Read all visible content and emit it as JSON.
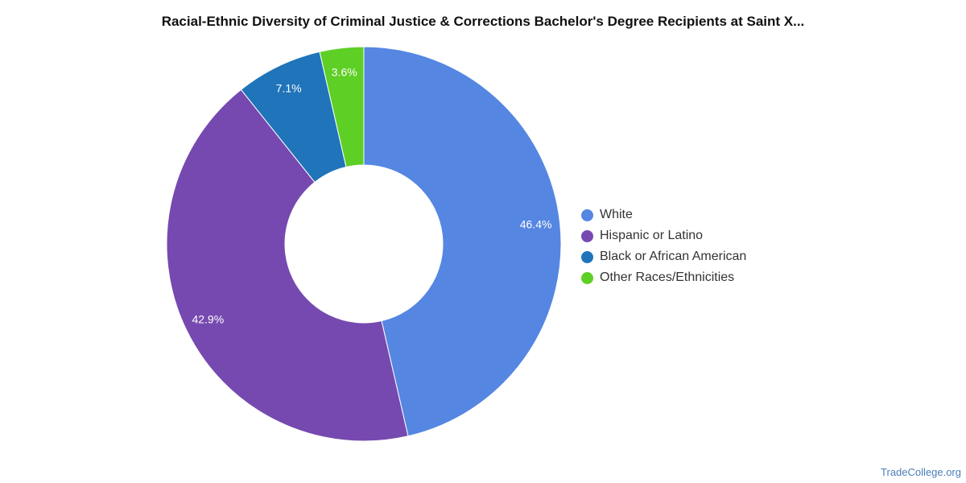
{
  "chart_data": {
    "type": "pie",
    "title": "Racial-Ethnic Diversity of Criminal Justice & Corrections Bachelor's Degree Recipients at Saint X...",
    "categories": [
      "White",
      "Hispanic or Latino",
      "Black or African American",
      "Other Races/Ethnicities"
    ],
    "values": [
      46.4,
      42.9,
      7.1,
      3.6
    ],
    "labels": [
      "46.4%",
      "42.9%",
      "7.1%",
      "3.6%"
    ],
    "colors": [
      "#5586e2",
      "#7649b0",
      "#1f74ba",
      "#5ecf25"
    ],
    "donut": true,
    "legend_position": "right"
  },
  "footer": {
    "source": "TradeCollege.org"
  }
}
